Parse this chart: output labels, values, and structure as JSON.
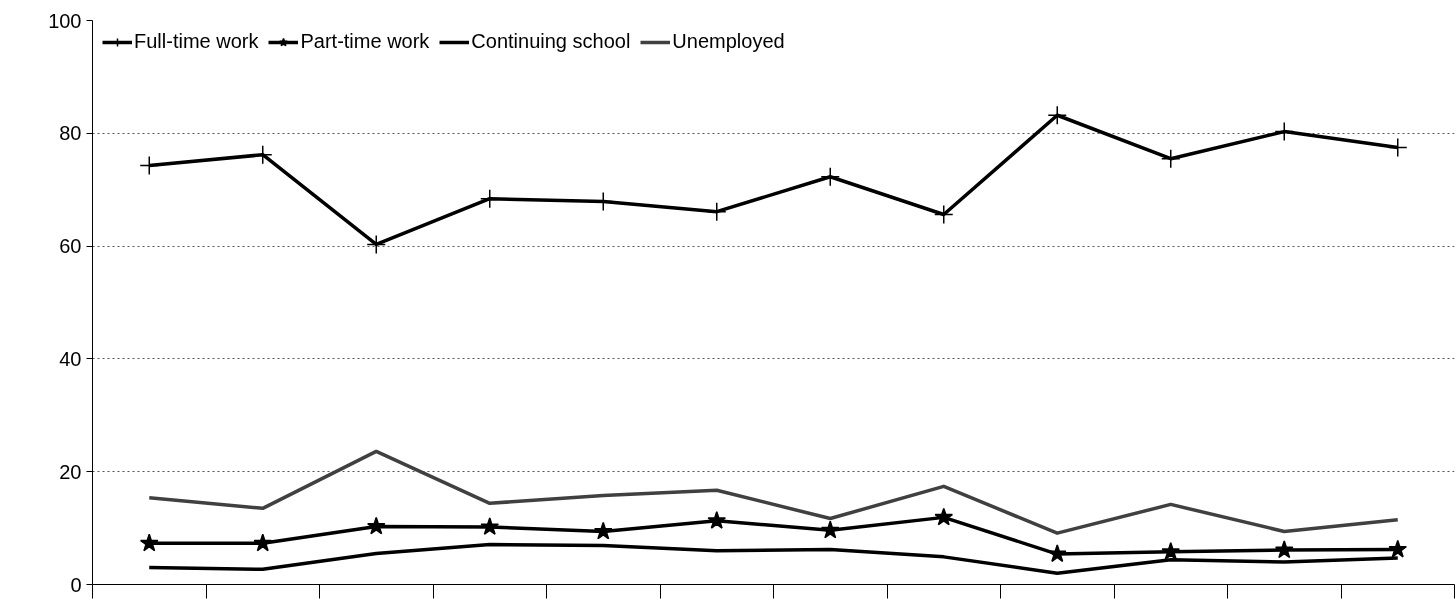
{
  "chart_data": {
    "type": "line",
    "categories": [
      null,
      null,
      null,
      null,
      null,
      null,
      null,
      null,
      null,
      null,
      null,
      null
    ],
    "series": [
      {
        "name": "Full-time work",
        "color": "#000000",
        "marker": "cross",
        "values": [
          74.3,
          76.2,
          60.3,
          68.4,
          67.9,
          66.1,
          72.3,
          65.6,
          83.2,
          75.5,
          80.3,
          77.5
        ]
      },
      {
        "name": "Part-time work",
        "color": "#000000",
        "marker": "star",
        "values": [
          7.3,
          7.3,
          10.3,
          10.2,
          9.4,
          11.3,
          9.6,
          11.9,
          5.4,
          5.8,
          6.1,
          6.2
        ]
      },
      {
        "name": "Continuing school",
        "color": "#000000",
        "values": [
          3.0,
          2.7,
          5.5,
          7.1,
          6.9,
          6.0,
          6.2,
          4.9,
          2.0,
          4.4,
          4.0,
          4.7
        ]
      },
      {
        "name": "Unemployed",
        "color": "#404040",
        "values": [
          15.4,
          13.5,
          23.6,
          14.4,
          15.8,
          16.7,
          11.7,
          17.4,
          9.1,
          14.2,
          9.4,
          11.5
        ]
      }
    ],
    "ylim": [
      0,
      100
    ],
    "yticks": [
      0,
      20,
      40,
      60,
      80,
      100
    ],
    "grid": "y",
    "legend": "top left",
    "tick_labels": "y"
  }
}
